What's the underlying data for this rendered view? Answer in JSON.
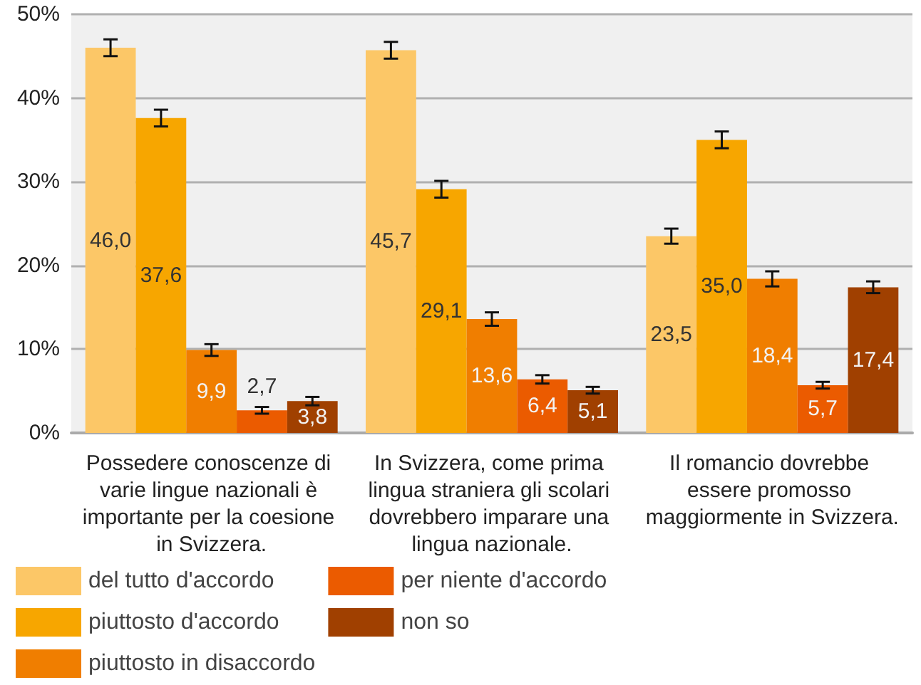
{
  "chart_data": {
    "type": "bar",
    "categories": [
      "Possedere conoscenze di varie lingue nazionali è importante per la coesione in Svizzera.",
      "In Svizzera, come prima lingua straniera gli scolari dovrebbero imparare una lingua nazionale.",
      "Il romancio dovrebbe essere promosso maggiormente in Svizzera."
    ],
    "series": [
      {
        "name": "del tutto d'accordo",
        "color": "#fcc767",
        "values": [
          46.0,
          45.7,
          23.5
        ],
        "value_labels": [
          "46,0",
          "45,7",
          "23,5"
        ],
        "errors": [
          1.0,
          1.0,
          0.9
        ]
      },
      {
        "name": "piuttosto d'accordo",
        "color": "#f7a600",
        "values": [
          37.6,
          29.1,
          35.0
        ],
        "value_labels": [
          "37,6",
          "29,1",
          "35,0"
        ],
        "errors": [
          1.0,
          1.0,
          1.0
        ]
      },
      {
        "name": "piuttosto in disaccordo",
        "color": "#f07e00",
        "values": [
          9.9,
          13.6,
          18.4
        ],
        "value_labels": [
          "9,9",
          "13,6",
          "18,4"
        ],
        "errors": [
          0.7,
          0.8,
          0.9
        ]
      },
      {
        "name": "per niente d'accordo",
        "color": "#eb5b00",
        "values": [
          2.7,
          6.4,
          5.7
        ],
        "value_labels": [
          "2,7",
          "6,4",
          "5,7"
        ],
        "errors": [
          0.4,
          0.5,
          0.4
        ]
      },
      {
        "name": "non so",
        "color": "#a04000",
        "values": [
          3.8,
          5.1,
          17.4
        ],
        "value_labels": [
          "3,8",
          "5,1",
          "17,4"
        ],
        "errors": [
          0.5,
          0.4,
          0.7
        ]
      }
    ],
    "ylim": [
      0,
      50
    ],
    "yticks": [
      {
        "value": 0,
        "label": "0%"
      },
      {
        "value": 10,
        "label": "10%"
      },
      {
        "value": 20,
        "label": "20%"
      },
      {
        "value": 30,
        "label": "30%"
      },
      {
        "value": 40,
        "label": "40%"
      },
      {
        "value": 50,
        "label": "50%"
      }
    ],
    "grid": "y",
    "legend": "bottom"
  }
}
